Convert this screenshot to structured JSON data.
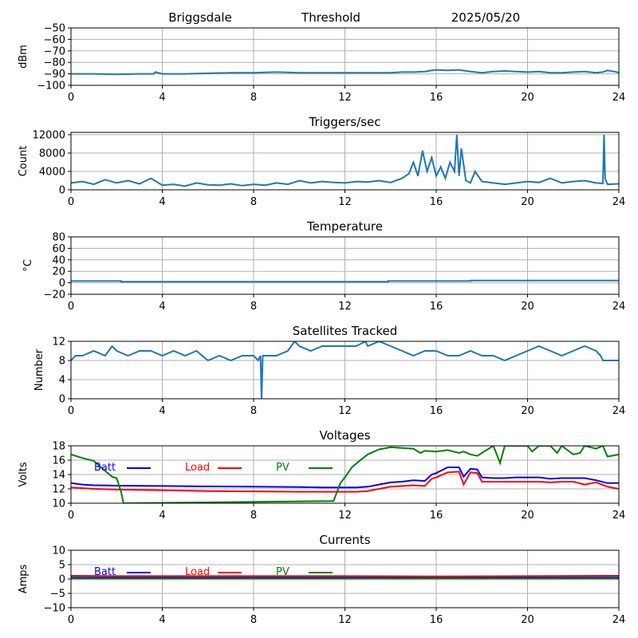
{
  "header": {
    "station": "Briggsdale",
    "mode": "Threshold",
    "date": "2025/05/20"
  },
  "colors": {
    "series": "#1f77b4",
    "batt": "#0000ff",
    "load": "#ff0000",
    "pv": "#008000",
    "grid": "#b0b0b0"
  },
  "chart_data": [
    {
      "type": "line",
      "title": "",
      "ylabel": "dBm",
      "xlim": [
        0,
        24
      ],
      "ylim": [
        -100,
        -50
      ],
      "xticks": [
        0,
        4,
        8,
        12,
        16,
        20,
        24
      ],
      "yticks": [
        -100,
        -90,
        -80,
        -70,
        -60,
        -50
      ],
      "grid": true,
      "series": [
        {
          "color": "series",
          "x": [
            0,
            1,
            2,
            3,
            3.6,
            3.7,
            4,
            5,
            6,
            7,
            8,
            9,
            10,
            11,
            12,
            13,
            14,
            14.5,
            15,
            15.5,
            15.8,
            16,
            16.5,
            17,
            17.5,
            18,
            18.5,
            19,
            19.5,
            20,
            20.5,
            21,
            21.5,
            22,
            22.5,
            23,
            23.3,
            23.5,
            23.8,
            24
          ],
          "y": [
            -90,
            -90,
            -90.5,
            -90,
            -90,
            -88.5,
            -90,
            -90,
            -89.5,
            -89,
            -89,
            -88.5,
            -89,
            -89,
            -89,
            -89,
            -89,
            -88.5,
            -88.5,
            -88,
            -87,
            -86.5,
            -87,
            -86.5,
            -88,
            -89,
            -88,
            -87.5,
            -88,
            -88.5,
            -88,
            -89,
            -89,
            -88.5,
            -88,
            -89,
            -88.5,
            -87,
            -88,
            -89
          ]
        }
      ]
    },
    {
      "type": "line",
      "title": "Triggers/sec",
      "ylabel": "Count",
      "xlim": [
        0,
        24
      ],
      "ylim": [
        0,
        12500
      ],
      "xticks": [
        0,
        4,
        8,
        12,
        16,
        20,
        24
      ],
      "yticks": [
        0,
        4000,
        8000,
        12000
      ],
      "grid": true,
      "series": [
        {
          "color": "series",
          "x": [
            0,
            0.5,
            1,
            1.5,
            2,
            2.5,
            3,
            3.5,
            4,
            4.5,
            5,
            5.5,
            6,
            6.5,
            7,
            7.5,
            8,
            8.5,
            9,
            9.5,
            10,
            10.5,
            11,
            11.5,
            12,
            12.5,
            13,
            13.5,
            14,
            14.5,
            14.8,
            15,
            15.2,
            15.4,
            15.6,
            15.8,
            16,
            16.2,
            16.4,
            16.6,
            16.8,
            16.9,
            17,
            17.1,
            17.3,
            17.5,
            17.7,
            18,
            18.5,
            19,
            19.5,
            20,
            20.5,
            21,
            21.5,
            22,
            22.5,
            23,
            23.3,
            23.35,
            23.4,
            23.5,
            24
          ],
          "y": [
            1500,
            1800,
            1200,
            2200,
            1500,
            2000,
            1300,
            2500,
            1000,
            1200,
            800,
            1500,
            1100,
            1000,
            1300,
            900,
            1200,
            1000,
            1500,
            1200,
            2000,
            1500,
            1800,
            1600,
            1500,
            1800,
            1700,
            2000,
            1600,
            2500,
            3500,
            6000,
            3000,
            8500,
            4000,
            7000,
            3000,
            5000,
            2500,
            6000,
            4000,
            12000,
            3000,
            9000,
            2000,
            1500,
            4000,
            1800,
            1500,
            1200,
            1500,
            1800,
            1600,
            2500,
            1500,
            1800,
            2000,
            1500,
            1400,
            12000,
            2500,
            1200,
            1300
          ]
        }
      ]
    },
    {
      "type": "line",
      "title": "Temperature",
      "ylabel": "°C",
      "xlim": [
        0,
        24
      ],
      "ylim": [
        -20,
        80
      ],
      "xticks": [
        0,
        4,
        8,
        12,
        16,
        20,
        24
      ],
      "yticks": [
        -20,
        0,
        20,
        40,
        60,
        80
      ],
      "grid": true,
      "series": [
        {
          "color": "series",
          "x": [
            0,
            2.2,
            2.2,
            13.9,
            13.9,
            17.5,
            17.5,
            24
          ],
          "y": [
            3,
            3,
            2,
            2,
            3,
            3,
            4,
            4
          ]
        }
      ]
    },
    {
      "type": "line",
      "title": "Satellites Tracked",
      "ylabel": "Number",
      "xlim": [
        0,
        24
      ],
      "ylim": [
        0,
        12
      ],
      "xticks": [
        0,
        4,
        8,
        12,
        16,
        20,
        24
      ],
      "yticks": [
        0,
        4,
        8,
        12
      ],
      "grid": true,
      "series": [
        {
          "color": "series",
          "x": [
            0,
            0.2,
            0.5,
            1,
            1.5,
            1.8,
            2,
            2.5,
            3,
            3.5,
            4,
            4.5,
            5,
            5.5,
            6,
            6.5,
            7,
            7.5,
            8,
            8.2,
            8.3,
            8.35,
            8.4,
            8.6,
            9,
            9.5,
            9.8,
            10,
            10.5,
            11,
            11.5,
            12,
            12.5,
            12.9,
            13,
            13.5,
            14,
            14.5,
            15,
            15.5,
            16,
            16.5,
            17,
            17.5,
            18,
            18.5,
            19,
            19.5,
            20,
            20.5,
            21,
            21.5,
            22,
            22.5,
            23,
            23.2,
            23.3,
            24
          ],
          "y": [
            8,
            9,
            9,
            10,
            9,
            11,
            10,
            9,
            10,
            10,
            9,
            10,
            9,
            10,
            8,
            9,
            8,
            9,
            9,
            8,
            9,
            0,
            9,
            9,
            9,
            10,
            12,
            11,
            10,
            11,
            11,
            11,
            11,
            12,
            11,
            12,
            11,
            10,
            9,
            10,
            10,
            9,
            9,
            10,
            9,
            9,
            8,
            9,
            10,
            11,
            10,
            9,
            10,
            11,
            10,
            9,
            8,
            8
          ]
        }
      ]
    },
    {
      "type": "line",
      "title": "Voltages",
      "ylabel": "Volts",
      "xlim": [
        0,
        24
      ],
      "ylim": [
        10,
        18
      ],
      "xticks": [
        0,
        4,
        8,
        12,
        16,
        20,
        24
      ],
      "yticks": [
        10,
        12,
        14,
        16,
        18
      ],
      "grid": true,
      "legend": [
        "Batt",
        "Load",
        "PV"
      ],
      "series": [
        {
          "name": "Batt",
          "color": "batt",
          "x": [
            0,
            0.5,
            1,
            2,
            4,
            6,
            8,
            10,
            11,
            12,
            12.5,
            13,
            13.5,
            14,
            14.5,
            15,
            15.5,
            15.8,
            16,
            16.5,
            17,
            17.2,
            17.5,
            17.8,
            18,
            18.5,
            19,
            19.5,
            20,
            20.5,
            21,
            21.5,
            22,
            22.5,
            23,
            23.5,
            24
          ],
          "y": [
            12.8,
            12.6,
            12.5,
            12.45,
            12.4,
            12.35,
            12.3,
            12.25,
            12.2,
            12.2,
            12.2,
            12.3,
            12.6,
            12.9,
            13,
            13.2,
            13.1,
            14,
            14.2,
            15,
            15,
            13.7,
            14.8,
            14.7,
            13.6,
            13.5,
            13.5,
            13.6,
            13.6,
            13.6,
            13.4,
            13.5,
            13.5,
            13.5,
            13.2,
            12.8,
            12.8
          ]
        },
        {
          "name": "Load",
          "color": "load",
          "x": [
            0,
            0.5,
            1,
            2,
            4,
            6,
            8,
            10,
            11,
            12,
            12.5,
            13,
            13.5,
            14,
            14.5,
            15,
            15.5,
            15.8,
            16,
            16.5,
            17,
            17.2,
            17.5,
            17.8,
            18,
            18.5,
            19,
            19.5,
            20,
            20.5,
            21,
            21.5,
            22,
            22.5,
            23,
            23.5,
            24
          ],
          "y": [
            12.2,
            12.1,
            12,
            11.9,
            11.8,
            11.7,
            11.65,
            11.6,
            11.6,
            11.6,
            11.6,
            11.7,
            12,
            12.3,
            12.4,
            12.5,
            12.4,
            13.4,
            13.6,
            14.3,
            14.4,
            12.6,
            14.3,
            14.2,
            13,
            13,
            13,
            13,
            13,
            13,
            12.9,
            13,
            13,
            12.6,
            12.9,
            12.3,
            12
          ]
        },
        {
          "name": "PV",
          "color": "pv",
          "x": [
            0,
            0.5,
            1,
            1.5,
            1.8,
            2,
            2.2,
            2.3,
            11.5,
            11.8,
            12,
            12.3,
            12.6,
            13,
            13.5,
            14,
            14.5,
            15,
            15.3,
            15.5,
            16,
            16.5,
            17,
            17.2,
            17.5,
            17.8,
            18,
            18.5,
            18.8,
            19,
            19.5,
            20,
            20.2,
            20.5,
            21,
            21.3,
            21.5,
            22,
            22.3,
            22.5,
            23,
            23.3,
            23.5,
            24
          ],
          "y": [
            16.8,
            16.3,
            15.9,
            14.5,
            13.7,
            13.5,
            11.5,
            10,
            10.3,
            12.8,
            13.6,
            15,
            15.8,
            16.8,
            17.5,
            17.8,
            17.7,
            17.6,
            17,
            17.3,
            17.2,
            17.4,
            17,
            17.2,
            16.8,
            16.6,
            17,
            18,
            15.6,
            18,
            18,
            18,
            17.2,
            18,
            18,
            17,
            18,
            16.8,
            17,
            18,
            17.6,
            18,
            16.5,
            16.8
          ]
        }
      ]
    },
    {
      "type": "line",
      "title": "Currents",
      "ylabel": "Amps",
      "xlim": [
        0,
        24
      ],
      "ylim": [
        -10,
        10
      ],
      "xticks": [
        0,
        4,
        8,
        12,
        16,
        20,
        24
      ],
      "yticks": [
        -10,
        -5,
        0,
        5,
        10
      ],
      "grid": true,
      "legend": [
        "Batt",
        "Load",
        "PV"
      ],
      "series": [
        {
          "name": "Batt",
          "color": "batt",
          "x": [
            0,
            24
          ],
          "y": [
            0.5,
            0.5
          ]
        },
        {
          "name": "Load",
          "color": "load",
          "x": [
            0,
            2,
            6,
            12,
            16,
            20,
            24
          ],
          "y": [
            1.1,
            1,
            1,
            1,
            0.9,
            1,
            1.1
          ]
        },
        {
          "name": "PV",
          "color": "pv",
          "x": [
            0,
            24
          ],
          "y": [
            0.1,
            0.1
          ]
        }
      ]
    }
  ]
}
